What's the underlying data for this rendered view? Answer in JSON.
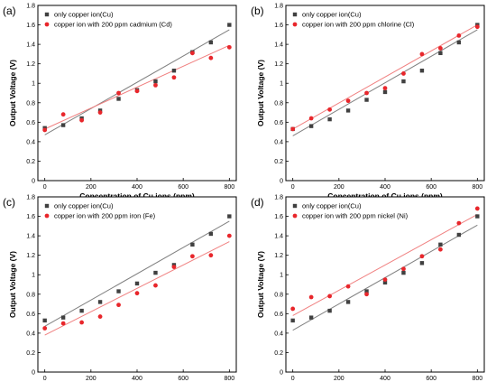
{
  "chart_data": [
    {
      "type": "scatter",
      "panel_label": "(a)",
      "xlabel": "Concentration of Cu ions (ppm)",
      "ylabel": "Output Voltage (V)",
      "xlim": [
        -30,
        830
      ],
      "ylim": [
        0,
        1.8
      ],
      "xticks": [
        0,
        200,
        400,
        600,
        800
      ],
      "yticks": [
        0,
        0.2,
        0.4,
        0.6,
        0.8,
        1,
        1.2,
        1.4,
        1.6,
        1.8
      ],
      "legend_position": "top-left",
      "series": [
        {
          "name": "only copper ion(Cu)",
          "marker": "square",
          "color": "#404040",
          "x": [
            0,
            80,
            160,
            240,
            320,
            400,
            480,
            560,
            640,
            720,
            800
          ],
          "y": [
            0.54,
            0.57,
            0.64,
            0.72,
            0.84,
            0.93,
            1.02,
            1.13,
            1.32,
            1.42,
            1.6
          ]
        },
        {
          "name": "copper ion with 200 ppm cadmium (Cd)",
          "marker": "circle",
          "color": "#e8262b",
          "x": [
            0,
            80,
            160,
            240,
            320,
            400,
            480,
            560,
            640,
            720,
            800
          ],
          "y": [
            0.52,
            0.68,
            0.62,
            0.7,
            0.9,
            0.92,
            0.98,
            1.06,
            1.31,
            1.26,
            1.37
          ]
        }
      ],
      "fit_lines": [
        {
          "color": "#808080",
          "y_at_0": 0.47,
          "y_at_800": 1.55
        },
        {
          "color": "#f08080",
          "y_at_0": 0.53,
          "y_at_800": 1.39
        }
      ]
    },
    {
      "type": "scatter",
      "panel_label": "(b)",
      "xlabel": "Concentration of Cu ions (ppm)",
      "ylabel": "Output Voltage (V)",
      "xlim": [
        -30,
        830
      ],
      "ylim": [
        0,
        1.8
      ],
      "xticks": [
        0,
        200,
        400,
        600,
        800
      ],
      "yticks": [
        0,
        0.2,
        0.4,
        0.6,
        0.8,
        1,
        1.2,
        1.4,
        1.6,
        1.8
      ],
      "legend_position": "top-left",
      "series": [
        {
          "name": "only copper ion(Cu)",
          "marker": "square",
          "color": "#404040",
          "x": [
            0,
            80,
            160,
            240,
            320,
            400,
            480,
            560,
            640,
            720,
            800
          ],
          "y": [
            0.53,
            0.56,
            0.63,
            0.72,
            0.83,
            0.91,
            1.02,
            1.13,
            1.31,
            1.42,
            1.6
          ]
        },
        {
          "name": "copper ion with 200 ppm chlorine (Cl)",
          "marker": "circle",
          "color": "#e8262b",
          "x": [
            0,
            80,
            160,
            240,
            320,
            400,
            480,
            560,
            640,
            720,
            800
          ],
          "y": [
            0.53,
            0.64,
            0.73,
            0.82,
            0.9,
            0.95,
            1.1,
            1.3,
            1.36,
            1.49,
            1.58
          ]
        }
      ],
      "fit_lines": [
        {
          "color": "#808080",
          "y_at_0": 0.46,
          "y_at_800": 1.55
        },
        {
          "color": "#f08080",
          "y_at_0": 0.53,
          "y_at_800": 1.6
        }
      ]
    },
    {
      "type": "scatter",
      "panel_label": "(c)",
      "xlabel": "Concentration of Cu ions (ppm)",
      "ylabel": "Output Voltage (V)",
      "xlim": [
        -30,
        830
      ],
      "ylim": [
        0,
        1.8
      ],
      "xticks": [
        0,
        200,
        400,
        600,
        800
      ],
      "yticks": [
        0,
        0.2,
        0.4,
        0.6,
        0.8,
        1,
        1.2,
        1.4,
        1.6,
        1.8
      ],
      "legend_position": "top-left",
      "series": [
        {
          "name": "only copper ion(Cu)",
          "marker": "square",
          "color": "#404040",
          "x": [
            0,
            80,
            160,
            240,
            320,
            400,
            480,
            560,
            640,
            720,
            800
          ],
          "y": [
            0.53,
            0.56,
            0.63,
            0.72,
            0.83,
            0.91,
            1.02,
            1.1,
            1.31,
            1.42,
            1.6
          ]
        },
        {
          "name": "copper ion with 200 ppm iron (Fe)",
          "marker": "circle",
          "color": "#e8262b",
          "x": [
            0,
            80,
            160,
            240,
            320,
            400,
            480,
            560,
            640,
            720,
            800
          ],
          "y": [
            0.45,
            0.5,
            0.51,
            0.57,
            0.69,
            0.81,
            0.89,
            1.08,
            1.19,
            1.2,
            1.4
          ]
        }
      ],
      "fit_lines": [
        {
          "color": "#808080",
          "y_at_0": 0.47,
          "y_at_800": 1.55
        },
        {
          "color": "#f08080",
          "y_at_0": 0.38,
          "y_at_800": 1.34
        }
      ]
    },
    {
      "type": "scatter",
      "panel_label": "(d)",
      "xlabel": "Concentration of Cu ions (ppm)",
      "ylabel": "Output Voltage (V)",
      "xlim": [
        -30,
        830
      ],
      "ylim": [
        0,
        1.8
      ],
      "xticks": [
        0,
        200,
        400,
        600,
        800
      ],
      "yticks": [
        0,
        0.2,
        0.4,
        0.6,
        0.8,
        1,
        1.2,
        1.4,
        1.6,
        1.8
      ],
      "legend_position": "top-left",
      "series": [
        {
          "name": "only copper ion(Cu)",
          "marker": "square",
          "color": "#404040",
          "x": [
            0,
            80,
            160,
            240,
            320,
            400,
            480,
            560,
            640,
            720,
            800
          ],
          "y": [
            0.53,
            0.56,
            0.63,
            0.72,
            0.83,
            0.92,
            1.02,
            1.12,
            1.31,
            1.41,
            1.6
          ]
        },
        {
          "name": "copper ion with 200 ppm nickel (Ni)",
          "marker": "circle",
          "color": "#e8262b",
          "x": [
            0,
            80,
            160,
            240,
            320,
            400,
            480,
            560,
            640,
            720,
            800
          ],
          "y": [
            0.65,
            0.77,
            0.78,
            0.88,
            0.8,
            0.95,
            1.06,
            1.19,
            1.26,
            1.53,
            1.68
          ]
        }
      ],
      "fit_lines": [
        {
          "color": "#808080",
          "y_at_0": 0.43,
          "y_at_800": 1.51
        },
        {
          "color": "#f08080",
          "y_at_0": 0.58,
          "y_at_800": 1.62
        }
      ]
    }
  ]
}
